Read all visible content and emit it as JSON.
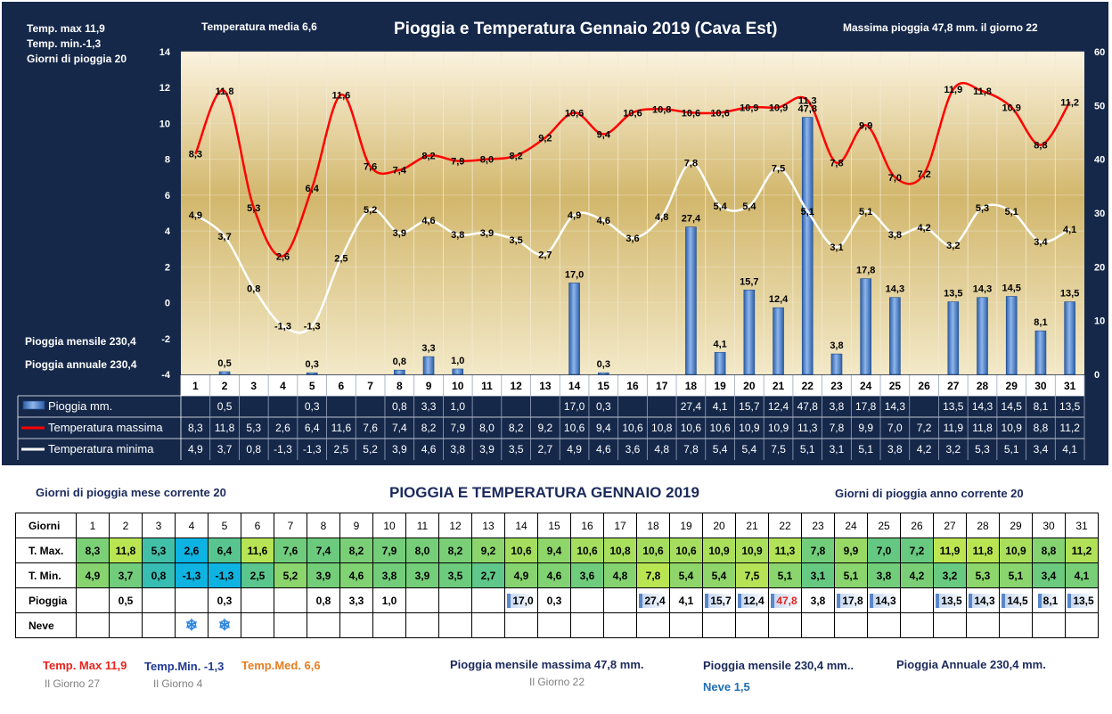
{
  "chart": {
    "title": "Pioggia e Temperatura Gennaio 2019 (Cava Est)",
    "summary_left": [
      "Temp. max  11,9",
      "Temp.  min.-1,3",
      "Giorni  di pioggia   20"
    ],
    "temp_media": "Temperatura media  6,6",
    "max_rain": "Massima pioggia  47,8 mm.  il giorno   22",
    "monthly_rain": "Pioggia mensile      230,4",
    "annual_rain": "Pioggia annuale    230,4",
    "legend": {
      "rain": "Pioggia mm.",
      "tmax": "Temperatura massima",
      "tmin": "Temperatura minima"
    },
    "colors": {
      "background": "#15284a",
      "tmax": "#ff0000",
      "tmin": "#ffffff",
      "rain_bar": "#4a7fd0"
    }
  },
  "chart_data": {
    "type": "line",
    "x": [
      "1",
      "2",
      "3",
      "4",
      "5",
      "6",
      "7",
      "8",
      "9",
      "10",
      "11",
      "12",
      "13",
      "14",
      "15",
      "16",
      "17",
      "18",
      "19",
      "20",
      "21",
      "22",
      "23",
      "24",
      "25",
      "26",
      "27",
      "28",
      "29",
      "30",
      "31"
    ],
    "y_left_ticks": [
      "14",
      "12",
      "10",
      "8",
      "6",
      "4",
      "2",
      "0",
      "-2",
      "-4"
    ],
    "y_right_ticks": [
      "60",
      "50",
      "40",
      "30",
      "20",
      "10",
      "0"
    ],
    "ylim_left": [
      -4,
      14
    ],
    "ylim_right": [
      0,
      60
    ],
    "series": [
      {
        "name": "Pioggia mm.",
        "kind": "bar",
        "axis": "right",
        "values": [
          null,
          0.5,
          null,
          null,
          0.3,
          null,
          null,
          0.8,
          3.3,
          1.0,
          null,
          null,
          null,
          17.0,
          0.3,
          null,
          null,
          27.4,
          4.1,
          15.7,
          12.4,
          47.8,
          3.8,
          17.8,
          14.3,
          null,
          13.5,
          14.3,
          14.5,
          8.1,
          13.5
        ],
        "labels": [
          "",
          "0,5",
          "",
          "",
          "0,3",
          "",
          "",
          "0,8",
          "3,3",
          "1,0",
          "",
          "",
          "",
          "17,0",
          "0,3",
          "",
          "",
          "27,4",
          "4,1",
          "15,7",
          "12,4",
          "47,8",
          "3,8",
          "17,8",
          "14,3",
          "",
          "13,5",
          "14,3",
          "14,5",
          "8,1",
          "13,5"
        ]
      },
      {
        "name": "Temperatura massima",
        "kind": "line",
        "axis": "left",
        "values": [
          8.3,
          11.8,
          5.3,
          2.6,
          6.4,
          11.6,
          7.6,
          7.4,
          8.2,
          7.9,
          8.0,
          8.2,
          9.2,
          10.6,
          9.4,
          10.6,
          10.8,
          10.6,
          10.6,
          10.9,
          10.9,
          11.3,
          7.8,
          9.9,
          7.0,
          7.2,
          11.9,
          11.8,
          10.9,
          8.8,
          11.2
        ],
        "labels": [
          "8,3",
          "11,8",
          "5,3",
          "2,6",
          "6,4",
          "11,6",
          "7,6",
          "7,4",
          "8,2",
          "7,9",
          "8,0",
          "8,2",
          "9,2",
          "10,6",
          "9,4",
          "10,6",
          "10,8",
          "10,6",
          "10,6",
          "10,9",
          "10,9",
          "11,3",
          "7,8",
          "9,9",
          "7,0",
          "7,2",
          "11,9",
          "11,8",
          "10,9",
          "8,8",
          "11,2"
        ]
      },
      {
        "name": "Temperatura minima",
        "kind": "line",
        "axis": "left",
        "values": [
          4.9,
          3.7,
          0.8,
          -1.3,
          -1.3,
          2.5,
          5.2,
          3.9,
          4.6,
          3.8,
          3.9,
          3.5,
          2.7,
          4.9,
          4.6,
          3.6,
          4.8,
          7.8,
          5.4,
          5.4,
          7.5,
          5.1,
          3.1,
          5.1,
          3.8,
          4.2,
          3.2,
          5.3,
          5.1,
          3.4,
          4.1
        ],
        "labels": [
          "4,9",
          "3,7",
          "0,8",
          "-1,3",
          "-1,3",
          "2,5",
          "5,2",
          "3,9",
          "4,6",
          "3,8",
          "3,9",
          "3,5",
          "2,7",
          "4,9",
          "4,6",
          "3,6",
          "4,8",
          "7,8",
          "5,4",
          "5,4",
          "7,5",
          "5,1",
          "3,1",
          "5,1",
          "3,8",
          "4,2",
          "3,2",
          "5,3",
          "5,1",
          "3,4",
          "4,1"
        ]
      }
    ]
  },
  "table": {
    "title": "PIOGGIA E TEMPERATURA GENNAIO 2019",
    "giorni_mese": "Giorni di pioggia mese corrente    20",
    "giorni_anno": "Giorni di pioggia anno corrente  20",
    "row_labels": [
      "Giorni",
      "T. Max.",
      "T. Min.",
      "Pioggia",
      "Neve"
    ],
    "days": [
      "1",
      "2",
      "3",
      "4",
      "5",
      "6",
      "7",
      "8",
      "9",
      "10",
      "11",
      "12",
      "13",
      "14",
      "15",
      "16",
      "17",
      "18",
      "19",
      "20",
      "21",
      "22",
      "23",
      "24",
      "25",
      "26",
      "27",
      "28",
      "29",
      "30",
      "31"
    ],
    "tmax": [
      "8,3",
      "11,8",
      "5,3",
      "2,6",
      "6,4",
      "11,6",
      "7,6",
      "7,4",
      "8,2",
      "7,9",
      "8,0",
      "8,2",
      "9,2",
      "10,6",
      "9,4",
      "10,6",
      "10,8",
      "10,6",
      "10,6",
      "10,9",
      "10,9",
      "11,3",
      "7,8",
      "9,9",
      "7,0",
      "7,2",
      "11,9",
      "11,8",
      "10,9",
      "8,8",
      "11,2"
    ],
    "tmin": [
      "4,9",
      "3,7",
      "0,8",
      "-1,3",
      "-1,3",
      "2,5",
      "5,2",
      "3,9",
      "4,6",
      "3,8",
      "3,9",
      "3,5",
      "2,7",
      "4,9",
      "4,6",
      "3,6",
      "4,8",
      "7,8",
      "5,4",
      "5,4",
      "7,5",
      "5,1",
      "3,1",
      "5,1",
      "3,8",
      "4,2",
      "3,2",
      "5,3",
      "5,1",
      "3,4",
      "4,1"
    ],
    "rain": [
      "",
      "0,5",
      "",
      "",
      "0,3",
      "",
      "",
      "0,8",
      "3,3",
      "1,0",
      "",
      "",
      "",
      "17,0",
      "0,3",
      "",
      "",
      "27,4",
      "4,1",
      "15,7",
      "12,4",
      "47,8",
      "3,8",
      "17,8",
      "14,3",
      "",
      "13,5",
      "14,3",
      "14,5",
      "8,1",
      "13,5"
    ],
    "snow_days": [
      4,
      5
    ]
  },
  "footer": {
    "tmax": "Temp. Max 11,9",
    "tmax_day": "Il Giorno  27",
    "tmin": "Temp.Min.  -1,3",
    "tmin_day": "Il Giorno 4",
    "tmed": "Temp.Med. 6,6",
    "max_rain": "Pioggia mensile massima 47,8 mm.",
    "max_rain_day": "Il Giorno 22",
    "monthly_rain": "Pioggia mensile  230,4 mm..",
    "annual_rain": "Pioggia Annuale  230,4    mm.",
    "snow": "Neve 1,5",
    "colors": {
      "tmax": "#e8231d",
      "tmin": "#1f3a93",
      "tmed": "#e67e22",
      "dark": "#1b2a5c",
      "snow": "#1f6fb5",
      "gray": "#808080"
    }
  }
}
